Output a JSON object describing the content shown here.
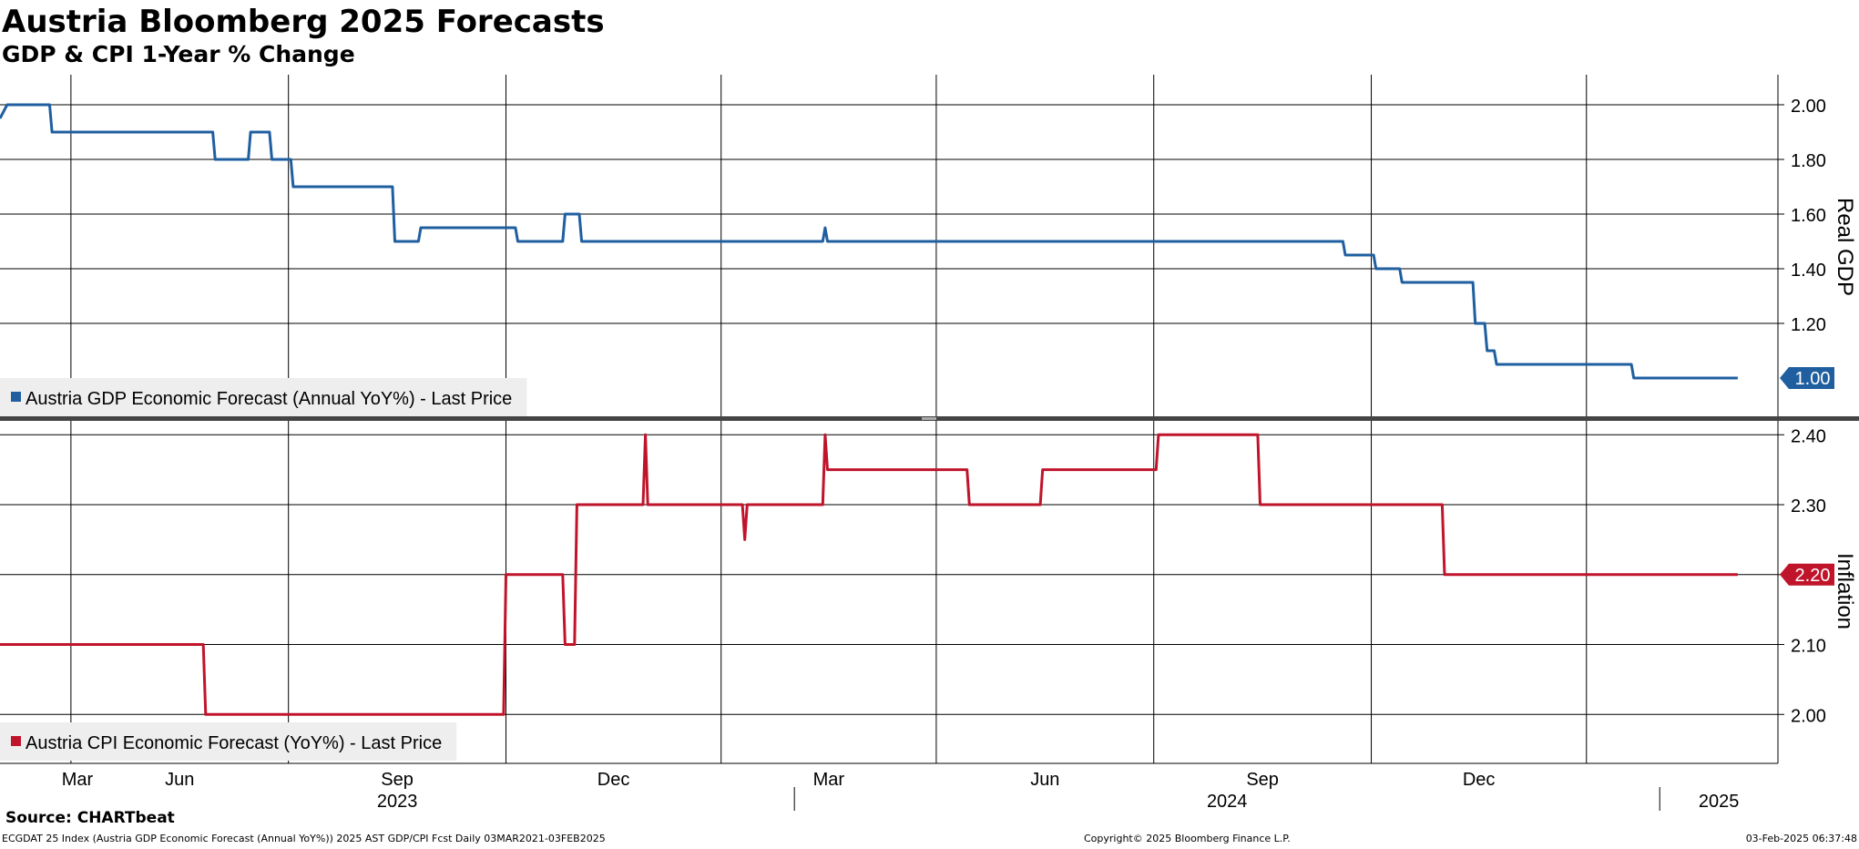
{
  "title": "Austria Bloomberg 2025 Forecasts",
  "subtitle": "GDP & CPI 1-Year % Change",
  "source": "Source: CHARTbeat",
  "footer": {
    "left": "ECGDAT 25 Index (Austria GDP Economic Forecast (Annual YoY%)) 2025 AST GDP/CPI Fcst  Daily 03MAR2021-03FEB2025",
    "center": "Copyright© 2025 Bloomberg Finance L.P.",
    "right": "03-Feb-2025 06:37:48"
  },
  "colors": {
    "gdp": "#1f5fa0",
    "cpi": "#c0142b",
    "legend_bg": "#eeeeee",
    "grid": "#000000",
    "divider": "#444444"
  },
  "chart_data": [
    {
      "type": "line",
      "panel": "top",
      "ylabel": "Real GDP",
      "ylim": [
        0.85,
        2.11
      ],
      "yticks": [
        1.2,
        1.4,
        1.6,
        1.8,
        2.0
      ],
      "ytick_labels": [
        "1.20",
        "1.40",
        "1.60",
        "1.80",
        "2.00"
      ],
      "grid": true,
      "legend_position": "bottom-left",
      "last_value_label": "1.00",
      "series": [
        {
          "name": "Austria GDP Economic Forecast (Annual YoY%) - Last Price",
          "color": "#1f5fa0",
          "x": [
            "2023-01-30",
            "2023-02-02",
            "2023-02-20",
            "2023-02-21",
            "2023-04-30",
            "2023-05-01",
            "2023-05-15",
            "2023-05-16",
            "2023-05-24",
            "2023-05-25",
            "2023-06-02",
            "2023-06-03",
            "2023-07-15",
            "2023-07-16",
            "2023-07-26",
            "2023-07-27",
            "2023-09-05",
            "2023-09-06",
            "2023-09-25",
            "2023-09-26",
            "2023-10-02",
            "2023-10-03",
            "2023-10-16",
            "2023-10-17",
            "2024-01-13",
            "2024-01-14",
            "2024-01-15",
            "2024-08-20",
            "2024-08-21",
            "2024-09-02",
            "2024-09-03",
            "2024-09-13",
            "2024-09-14",
            "2024-10-14",
            "2024-10-15",
            "2024-10-19",
            "2024-10-20",
            "2024-10-23",
            "2024-10-24",
            "2024-12-20",
            "2024-12-21",
            "2025-02-03"
          ],
          "y": [
            1.95,
            2.0,
            2.0,
            1.9,
            1.9,
            1.8,
            1.8,
            1.9,
            1.9,
            1.8,
            1.8,
            1.7,
            1.7,
            1.5,
            1.5,
            1.55,
            1.55,
            1.5,
            1.5,
            1.6,
            1.6,
            1.5,
            1.5,
            1.5,
            1.5,
            1.55,
            1.5,
            1.5,
            1.45,
            1.45,
            1.4,
            1.4,
            1.35,
            1.35,
            1.2,
            1.2,
            1.1,
            1.1,
            1.05,
            1.05,
            1.0,
            1.0
          ]
        }
      ]
    },
    {
      "type": "line",
      "panel": "bottom",
      "ylabel": "Inflation",
      "ylim": [
        1.93,
        2.4225
      ],
      "yticks": [
        2.0,
        2.1,
        2.2,
        2.3,
        2.4
      ],
      "ytick_labels": [
        "2.00",
        "2.10",
        "2.20",
        "2.30",
        "2.40"
      ],
      "grid": true,
      "legend_position": "bottom-left",
      "last_value_label": "2.20",
      "series": [
        {
          "name": "Austria CPI Economic Forecast (YoY%) - Last Price",
          "color": "#c0142b",
          "x": [
            "2023-01-30",
            "2023-04-26",
            "2023-04-27",
            "2023-08-31",
            "2023-09-01",
            "2023-09-25",
            "2023-09-26",
            "2023-09-30",
            "2023-10-01",
            "2023-10-29",
            "2023-10-30",
            "2023-10-31",
            "2023-12-10",
            "2023-12-11",
            "2023-12-12",
            "2024-01-13",
            "2024-01-14",
            "2024-01-15",
            "2024-03-14",
            "2024-03-15",
            "2024-04-14",
            "2024-04-15",
            "2024-06-02",
            "2024-06-03",
            "2024-07-15",
            "2024-07-16",
            "2024-10-01",
            "2024-10-02",
            "2025-02-03"
          ],
          "y": [
            2.1,
            2.1,
            2.0,
            2.0,
            2.2,
            2.2,
            2.1,
            2.1,
            2.3,
            2.3,
            2.4,
            2.3,
            2.3,
            2.25,
            2.3,
            2.3,
            2.4,
            2.35,
            2.35,
            2.3,
            2.3,
            2.35,
            2.35,
            2.4,
            2.4,
            2.3,
            2.3,
            2.2,
            2.2
          ]
        }
      ]
    }
  ],
  "x_axis": {
    "range": [
      "2023-01-30",
      "2025-02-20"
    ],
    "months": [
      {
        "label": "Mar",
        "date": "2023-03-01"
      },
      {
        "label": "Jun",
        "date": "2023-06-01"
      },
      {
        "label": "Sep",
        "date": "2023-09-01"
      },
      {
        "label": "Dec",
        "date": "2023-12-01"
      },
      {
        "label": "Mar",
        "date": "2024-03-01"
      },
      {
        "label": "Jun",
        "date": "2024-06-01"
      },
      {
        "label": "Sep",
        "date": "2024-09-01"
      },
      {
        "label": "Dec",
        "date": "2024-12-01"
      }
    ],
    "years": [
      {
        "label": "2023",
        "start": "2023-01-30",
        "end": "2024-01-01"
      },
      {
        "label": "2024",
        "start": "2024-01-01",
        "end": "2025-01-01"
      },
      {
        "label": "2025",
        "start": "2025-01-01",
        "end": "2025-02-20"
      }
    ]
  }
}
